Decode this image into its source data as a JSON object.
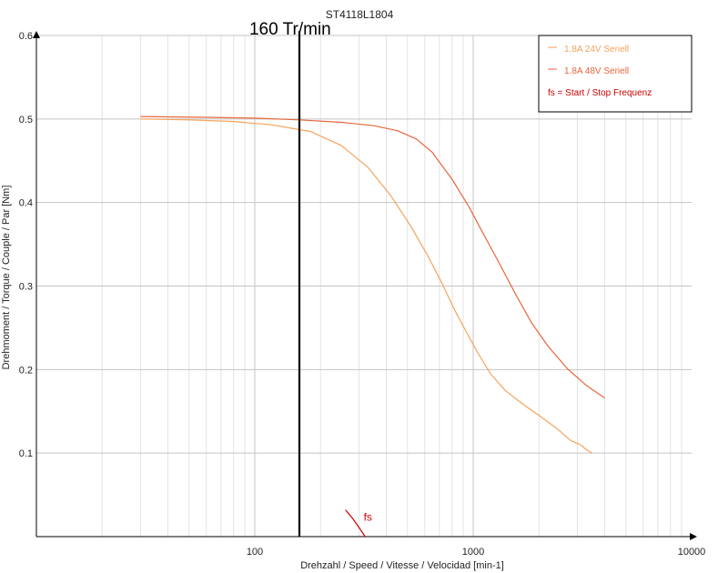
{
  "chart_data": {
    "type": "line",
    "title": "ST4118L1804",
    "xlabel": "Drehzahl / Speed / Vitesse / Velocidad [min-1]",
    "ylabel": "Drehmoment / Torque / Couple / Par [Nm]",
    "x_scale": "log",
    "xlim": [
      10,
      10000
    ],
    "ylim": [
      0,
      0.6
    ],
    "grid": true,
    "legend_position": "top-right",
    "x_ticks": [
      {
        "value": 100,
        "label": "100"
      },
      {
        "value": 1000,
        "label": "1000"
      },
      {
        "value": 10000,
        "label": "10000"
      }
    ],
    "y_ticks": [
      {
        "value": 0.1,
        "label": "0.1"
      },
      {
        "value": 0.2,
        "label": "0.2"
      },
      {
        "value": 0.3,
        "label": "0.3"
      },
      {
        "value": 0.4,
        "label": "0.4"
      },
      {
        "value": 0.5,
        "label": "0.5"
      },
      {
        "value": 0.6,
        "label": "0.6"
      }
    ],
    "series": [
      {
        "name": "1.8A  24V  Seriell",
        "color": "#f5a35c",
        "x": [
          30,
          50,
          80,
          120,
          180,
          250,
          330,
          420,
          520,
          620,
          720,
          820,
          930,
          1050,
          1200,
          1400,
          1700,
          2000,
          2400,
          2800,
          3100,
          3300,
          3500
        ],
        "y": [
          0.5,
          0.499,
          0.497,
          0.493,
          0.485,
          0.468,
          0.442,
          0.408,
          0.371,
          0.336,
          0.303,
          0.272,
          0.245,
          0.22,
          0.195,
          0.175,
          0.158,
          0.145,
          0.13,
          0.115,
          0.11,
          0.104,
          0.1
        ]
      },
      {
        "name": "1.8A  48V  Seriell",
        "color": "#e8663c",
        "x": [
          30,
          60,
          100,
          160,
          250,
          350,
          450,
          550,
          650,
          800,
          950,
          1100,
          1300,
          1550,
          1850,
          2200,
          2700,
          3300,
          4000
        ],
        "y": [
          0.503,
          0.502,
          0.501,
          0.499,
          0.496,
          0.492,
          0.486,
          0.476,
          0.46,
          0.428,
          0.396,
          0.365,
          0.33,
          0.292,
          0.256,
          0.228,
          0.201,
          0.181,
          0.166
        ]
      }
    ],
    "annotations": {
      "speed_marker": {
        "x": 160,
        "label": "160 Tr/min",
        "color": "#000000"
      },
      "fs_curve": {
        "label": "fs",
        "color": "#cc0000",
        "x": [
          260,
          280,
          300,
          320
        ],
        "y": [
          0.032,
          0.022,
          0.011,
          0.0
        ]
      }
    },
    "legend_note": {
      "label": "fs = Start / Stop Frequenz",
      "color": "#cc0000"
    }
  }
}
